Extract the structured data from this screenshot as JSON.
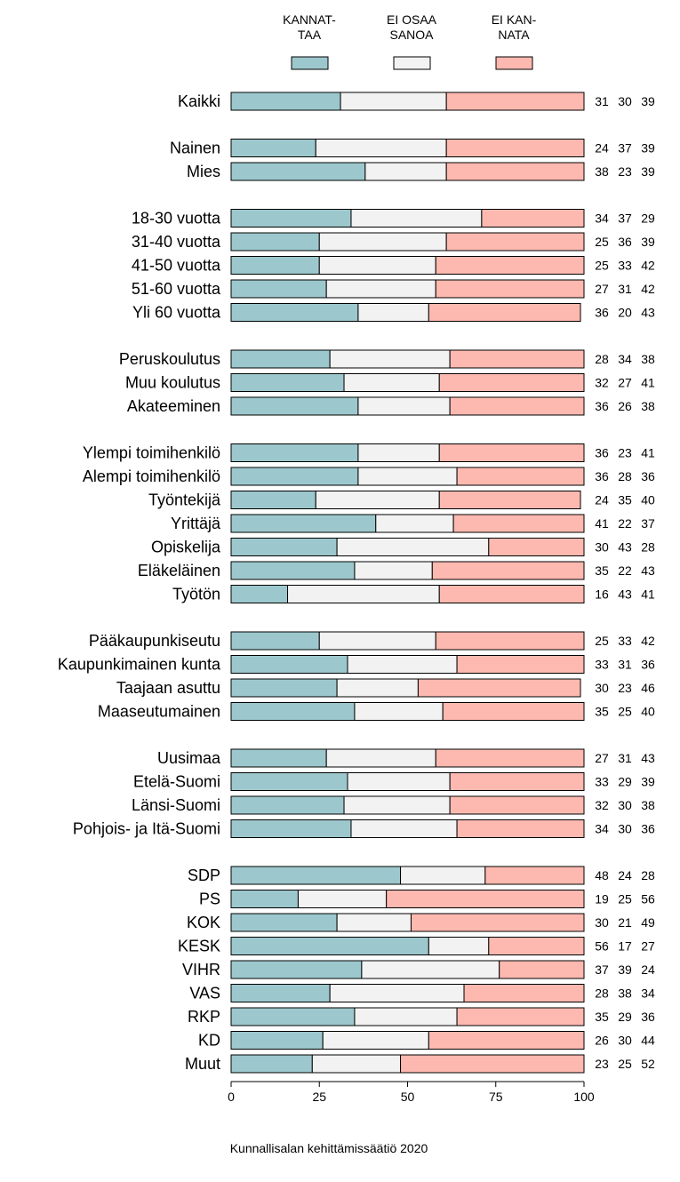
{
  "chart_data": {
    "type": "bar",
    "orientation": "horizontal",
    "stacked": true,
    "xlim": [
      0,
      100
    ],
    "xticks": [
      0,
      25,
      50,
      75,
      100
    ],
    "grid": false,
    "legend_position": "top",
    "legend": [
      {
        "line1": "KANNAT-",
        "line2": "TAA",
        "color": "#9cc8cd"
      },
      {
        "line1": "EI OSAA",
        "line2": "SANOA",
        "color": "#f2f2f2"
      },
      {
        "line1": "EI KAN-",
        "line2": "NATA",
        "color": "#fdb9b0"
      }
    ],
    "series_colors": [
      "#9cc8cd",
      "#f2f2f2",
      "#fdb9b0"
    ],
    "groups": [
      [
        {
          "label": "Kaikki",
          "values": [
            31,
            30,
            39
          ]
        }
      ],
      [
        {
          "label": "Nainen",
          "values": [
            24,
            37,
            39
          ]
        },
        {
          "label": "Mies",
          "values": [
            38,
            23,
            39
          ]
        }
      ],
      [
        {
          "label": "18-30 vuotta",
          "values": [
            34,
            37,
            29
          ]
        },
        {
          "label": "31-40 vuotta",
          "values": [
            25,
            36,
            39
          ]
        },
        {
          "label": "41-50 vuotta",
          "values": [
            25,
            33,
            42
          ]
        },
        {
          "label": "51-60 vuotta",
          "values": [
            27,
            31,
            42
          ]
        },
        {
          "label": "Yli 60 vuotta",
          "values": [
            36,
            20,
            43
          ]
        }
      ],
      [
        {
          "label": "Peruskoulutus",
          "values": [
            28,
            34,
            38
          ]
        },
        {
          "label": "Muu koulutus",
          "values": [
            32,
            27,
            41
          ]
        },
        {
          "label": "Akateeminen",
          "values": [
            36,
            26,
            38
          ]
        }
      ],
      [
        {
          "label": "Ylempi toimihenkilö",
          "values": [
            36,
            23,
            41
          ]
        },
        {
          "label": "Alempi toimihenkilö",
          "values": [
            36,
            28,
            36
          ]
        },
        {
          "label": "Työntekijä",
          "values": [
            24,
            35,
            40
          ]
        },
        {
          "label": "Yrittäjä",
          "values": [
            41,
            22,
            37
          ]
        },
        {
          "label": "Opiskelija",
          "values": [
            30,
            43,
            28
          ]
        },
        {
          "label": "Eläkeläinen",
          "values": [
            35,
            22,
            43
          ]
        },
        {
          "label": "Työtön",
          "values": [
            16,
            43,
            41
          ]
        }
      ],
      [
        {
          "label": "Pääkaupunkiseutu",
          "values": [
            25,
            33,
            42
          ]
        },
        {
          "label": "Kaupunkimainen kunta",
          "values": [
            33,
            31,
            36
          ]
        },
        {
          "label": "Taajaan asuttu",
          "values": [
            30,
            23,
            46
          ]
        },
        {
          "label": "Maaseutumainen",
          "values": [
            35,
            25,
            40
          ]
        }
      ],
      [
        {
          "label": "Uusimaa",
          "values": [
            27,
            31,
            43
          ]
        },
        {
          "label": "Etelä-Suomi",
          "values": [
            33,
            29,
            39
          ]
        },
        {
          "label": "Länsi-Suomi",
          "values": [
            32,
            30,
            38
          ]
        },
        {
          "label": "Pohjois- ja Itä-Suomi",
          "values": [
            34,
            30,
            36
          ]
        }
      ],
      [
        {
          "label": "SDP",
          "values": [
            48,
            24,
            28
          ]
        },
        {
          "label": "PS",
          "values": [
            19,
            25,
            56
          ]
        },
        {
          "label": "KOK",
          "values": [
            30,
            21,
            49
          ]
        },
        {
          "label": "KESK",
          "values": [
            56,
            17,
            27
          ]
        },
        {
          "label": "VIHR",
          "values": [
            37,
            39,
            24
          ]
        },
        {
          "label": "VAS",
          "values": [
            28,
            38,
            34
          ]
        },
        {
          "label": "RKP",
          "values": [
            35,
            29,
            36
          ]
        },
        {
          "label": "KD",
          "values": [
            26,
            30,
            44
          ]
        },
        {
          "label": "Muut",
          "values": [
            23,
            25,
            52
          ]
        }
      ]
    ],
    "source": "Kunnallisalan kehittämissäätiö 2020"
  }
}
